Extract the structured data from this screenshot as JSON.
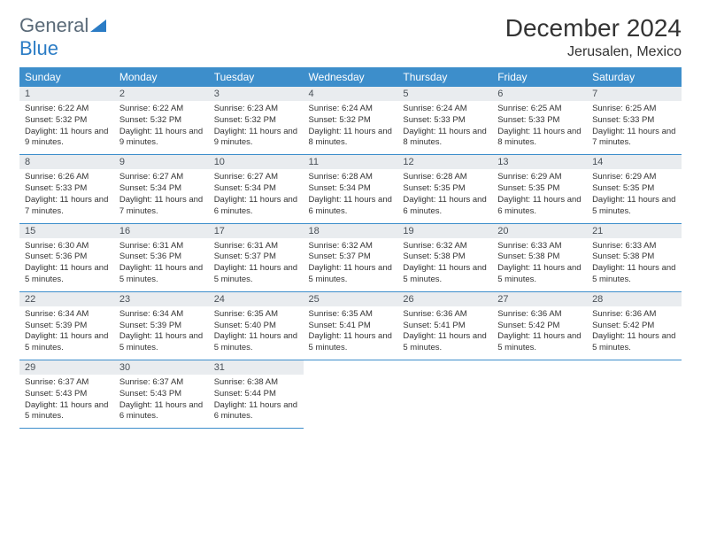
{
  "logo": {
    "text1": "General",
    "text2": "Blue"
  },
  "header": {
    "title": "December 2024",
    "location": "Jerusalen, Mexico"
  },
  "style": {
    "header_bg": "#3d8ecb",
    "header_fg": "#ffffff",
    "daynum_bg": "#e9ecef",
    "cell_border": "#3d8ecb",
    "logo_gray": "#5a6a78",
    "logo_blue": "#2b7cc5",
    "title_fontsize": 28,
    "location_fontsize": 16,
    "th_fontsize": 12,
    "body_fontsize": 9.5
  },
  "dayHeaders": [
    "Sunday",
    "Monday",
    "Tuesday",
    "Wednesday",
    "Thursday",
    "Friday",
    "Saturday"
  ],
  "weeks": [
    [
      {
        "n": "1",
        "sr": "Sunrise: 6:22 AM",
        "ss": "Sunset: 5:32 PM",
        "dl": "Daylight: 11 hours and 9 minutes."
      },
      {
        "n": "2",
        "sr": "Sunrise: 6:22 AM",
        "ss": "Sunset: 5:32 PM",
        "dl": "Daylight: 11 hours and 9 minutes."
      },
      {
        "n": "3",
        "sr": "Sunrise: 6:23 AM",
        "ss": "Sunset: 5:32 PM",
        "dl": "Daylight: 11 hours and 9 minutes."
      },
      {
        "n": "4",
        "sr": "Sunrise: 6:24 AM",
        "ss": "Sunset: 5:32 PM",
        "dl": "Daylight: 11 hours and 8 minutes."
      },
      {
        "n": "5",
        "sr": "Sunrise: 6:24 AM",
        "ss": "Sunset: 5:33 PM",
        "dl": "Daylight: 11 hours and 8 minutes."
      },
      {
        "n": "6",
        "sr": "Sunrise: 6:25 AM",
        "ss": "Sunset: 5:33 PM",
        "dl": "Daylight: 11 hours and 8 minutes."
      },
      {
        "n": "7",
        "sr": "Sunrise: 6:25 AM",
        "ss": "Sunset: 5:33 PM",
        "dl": "Daylight: 11 hours and 7 minutes."
      }
    ],
    [
      {
        "n": "8",
        "sr": "Sunrise: 6:26 AM",
        "ss": "Sunset: 5:33 PM",
        "dl": "Daylight: 11 hours and 7 minutes."
      },
      {
        "n": "9",
        "sr": "Sunrise: 6:27 AM",
        "ss": "Sunset: 5:34 PM",
        "dl": "Daylight: 11 hours and 7 minutes."
      },
      {
        "n": "10",
        "sr": "Sunrise: 6:27 AM",
        "ss": "Sunset: 5:34 PM",
        "dl": "Daylight: 11 hours and 6 minutes."
      },
      {
        "n": "11",
        "sr": "Sunrise: 6:28 AM",
        "ss": "Sunset: 5:34 PM",
        "dl": "Daylight: 11 hours and 6 minutes."
      },
      {
        "n": "12",
        "sr": "Sunrise: 6:28 AM",
        "ss": "Sunset: 5:35 PM",
        "dl": "Daylight: 11 hours and 6 minutes."
      },
      {
        "n": "13",
        "sr": "Sunrise: 6:29 AM",
        "ss": "Sunset: 5:35 PM",
        "dl": "Daylight: 11 hours and 6 minutes."
      },
      {
        "n": "14",
        "sr": "Sunrise: 6:29 AM",
        "ss": "Sunset: 5:35 PM",
        "dl": "Daylight: 11 hours and 5 minutes."
      }
    ],
    [
      {
        "n": "15",
        "sr": "Sunrise: 6:30 AM",
        "ss": "Sunset: 5:36 PM",
        "dl": "Daylight: 11 hours and 5 minutes."
      },
      {
        "n": "16",
        "sr": "Sunrise: 6:31 AM",
        "ss": "Sunset: 5:36 PM",
        "dl": "Daylight: 11 hours and 5 minutes."
      },
      {
        "n": "17",
        "sr": "Sunrise: 6:31 AM",
        "ss": "Sunset: 5:37 PM",
        "dl": "Daylight: 11 hours and 5 minutes."
      },
      {
        "n": "18",
        "sr": "Sunrise: 6:32 AM",
        "ss": "Sunset: 5:37 PM",
        "dl": "Daylight: 11 hours and 5 minutes."
      },
      {
        "n": "19",
        "sr": "Sunrise: 6:32 AM",
        "ss": "Sunset: 5:38 PM",
        "dl": "Daylight: 11 hours and 5 minutes."
      },
      {
        "n": "20",
        "sr": "Sunrise: 6:33 AM",
        "ss": "Sunset: 5:38 PM",
        "dl": "Daylight: 11 hours and 5 minutes."
      },
      {
        "n": "21",
        "sr": "Sunrise: 6:33 AM",
        "ss": "Sunset: 5:38 PM",
        "dl": "Daylight: 11 hours and 5 minutes."
      }
    ],
    [
      {
        "n": "22",
        "sr": "Sunrise: 6:34 AM",
        "ss": "Sunset: 5:39 PM",
        "dl": "Daylight: 11 hours and 5 minutes."
      },
      {
        "n": "23",
        "sr": "Sunrise: 6:34 AM",
        "ss": "Sunset: 5:39 PM",
        "dl": "Daylight: 11 hours and 5 minutes."
      },
      {
        "n": "24",
        "sr": "Sunrise: 6:35 AM",
        "ss": "Sunset: 5:40 PM",
        "dl": "Daylight: 11 hours and 5 minutes."
      },
      {
        "n": "25",
        "sr": "Sunrise: 6:35 AM",
        "ss": "Sunset: 5:41 PM",
        "dl": "Daylight: 11 hours and 5 minutes."
      },
      {
        "n": "26",
        "sr": "Sunrise: 6:36 AM",
        "ss": "Sunset: 5:41 PM",
        "dl": "Daylight: 11 hours and 5 minutes."
      },
      {
        "n": "27",
        "sr": "Sunrise: 6:36 AM",
        "ss": "Sunset: 5:42 PM",
        "dl": "Daylight: 11 hours and 5 minutes."
      },
      {
        "n": "28",
        "sr": "Sunrise: 6:36 AM",
        "ss": "Sunset: 5:42 PM",
        "dl": "Daylight: 11 hours and 5 minutes."
      }
    ],
    [
      {
        "n": "29",
        "sr": "Sunrise: 6:37 AM",
        "ss": "Sunset: 5:43 PM",
        "dl": "Daylight: 11 hours and 5 minutes."
      },
      {
        "n": "30",
        "sr": "Sunrise: 6:37 AM",
        "ss": "Sunset: 5:43 PM",
        "dl": "Daylight: 11 hours and 6 minutes."
      },
      {
        "n": "31",
        "sr": "Sunrise: 6:38 AM",
        "ss": "Sunset: 5:44 PM",
        "dl": "Daylight: 11 hours and 6 minutes."
      },
      null,
      null,
      null,
      null
    ]
  ]
}
